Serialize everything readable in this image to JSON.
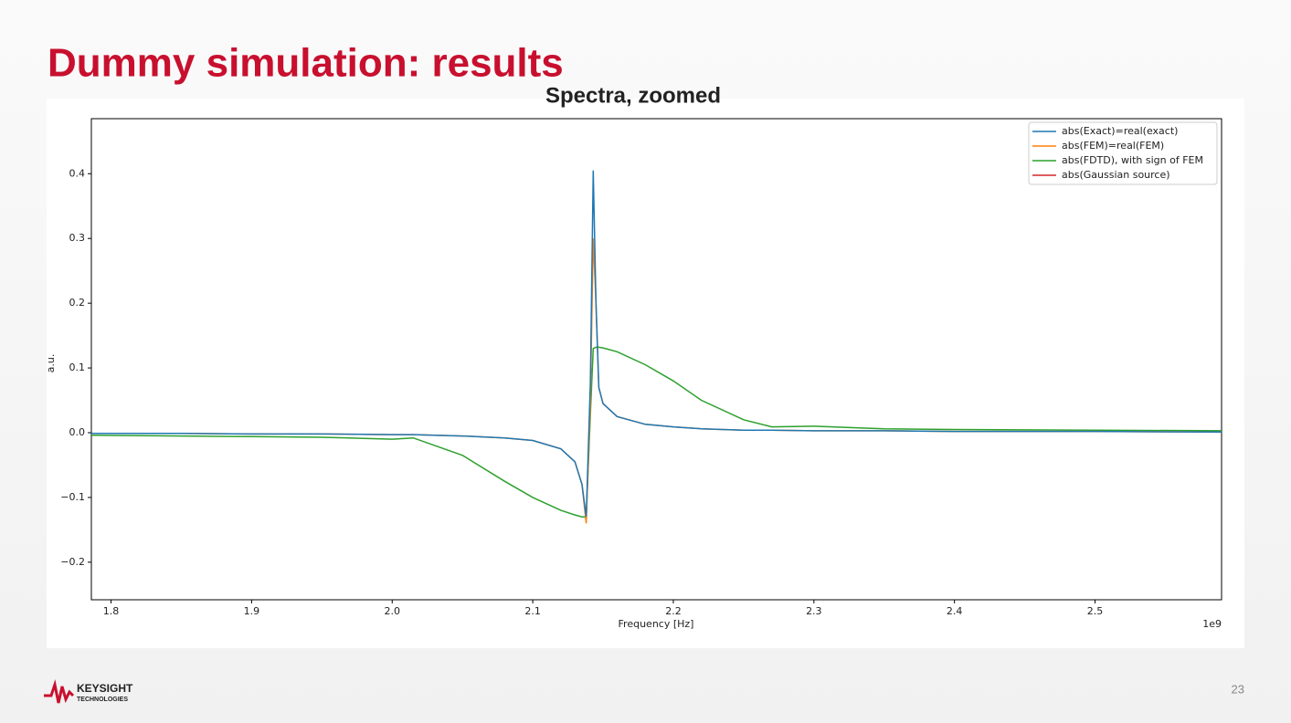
{
  "slide": {
    "title": "Dummy simulation: results",
    "logo": "KEYSIGHT",
    "logo_sub": "TECHNOLOGIES",
    "page_number": "23"
  },
  "chart_data": {
    "type": "line",
    "title": "Spectra, zoomed",
    "x_label": "Frequency [Hz]",
    "y_label": "a.u.",
    "x_offset_label": "1e9",
    "legend": "upper right",
    "grid": false,
    "xlim": [
      1.786,
      2.59
    ],
    "ylim": [
      -0.258,
      0.485
    ],
    "xticks": [
      1.8,
      1.9,
      {
        "value": 2,
        "label": "2.0"
      },
      2.1,
      2.2,
      2.3,
      2.4,
      2.5
    ],
    "yticks": [
      {
        "value": -0.2,
        "label": "−0.2"
      },
      {
        "value": -0.1,
        "label": "−0.1"
      },
      {
        "value": 0,
        "label": "0.0"
      },
      0.1,
      0.2,
      0.3,
      0.4
    ],
    "x": [
      1.786,
      1.85,
      1.9,
      1.95,
      2.0,
      2.015,
      2.05,
      2.08,
      2.1,
      2.12,
      2.13,
      2.135,
      2.138,
      2.141,
      2.143,
      2.145,
      2.147,
      2.15,
      2.16,
      2.18,
      2.2,
      2.22,
      2.25,
      2.27,
      2.3,
      2.35,
      2.4,
      2.5,
      2.59
    ],
    "series": [
      {
        "name": "abs(Exact)=real(exact)",
        "color": "#1f77b4",
        "values": [
          -0.001,
          -0.001,
          -0.002,
          -0.002,
          -0.003,
          -0.003,
          -0.005,
          -0.008,
          -0.012,
          -0.025,
          -0.045,
          -0.08,
          -0.13,
          0.08,
          0.405,
          0.2,
          0.07,
          0.045,
          0.025,
          0.013,
          0.009,
          0.006,
          0.004,
          0.004,
          0.003,
          0.003,
          0.002,
          0.002,
          0.001
        ]
      },
      {
        "name": "abs(FEM)=real(FEM)",
        "color": "#ff7f0e",
        "values": [
          -0.001,
          -0.001,
          -0.002,
          -0.002,
          -0.003,
          -0.003,
          -0.005,
          -0.008,
          -0.012,
          -0.025,
          -0.045,
          -0.08,
          -0.14,
          0.05,
          0.3,
          0.2,
          0.07,
          0.045,
          0.025,
          0.013,
          0.009,
          0.006,
          0.004,
          0.004,
          0.003,
          0.003,
          0.002,
          0.002,
          0.001
        ]
      },
      {
        "name": "abs(FDTD), with sign of FEM",
        "color": "#2ca02c",
        "values": [
          -0.004,
          -0.005,
          -0.006,
          -0.007,
          -0.01,
          -0.008,
          -0.035,
          -0.075,
          -0.1,
          -0.12,
          -0.127,
          -0.13,
          -0.13,
          0.03,
          0.13,
          0.132,
          0.132,
          0.131,
          0.125,
          0.105,
          0.08,
          0.05,
          0.02,
          0.009,
          0.01,
          0.006,
          0.005,
          0.004,
          0.003
        ]
      },
      {
        "name": "abs(Gaussian source)",
        "color": "#d62728",
        "values": [
          null,
          null,
          null,
          null,
          null,
          null,
          null,
          null,
          null,
          null,
          null,
          null,
          null,
          null,
          null,
          null,
          null,
          null,
          null,
          null,
          null,
          null,
          null,
          null,
          null,
          null,
          null,
          null,
          null
        ]
      }
    ]
  }
}
